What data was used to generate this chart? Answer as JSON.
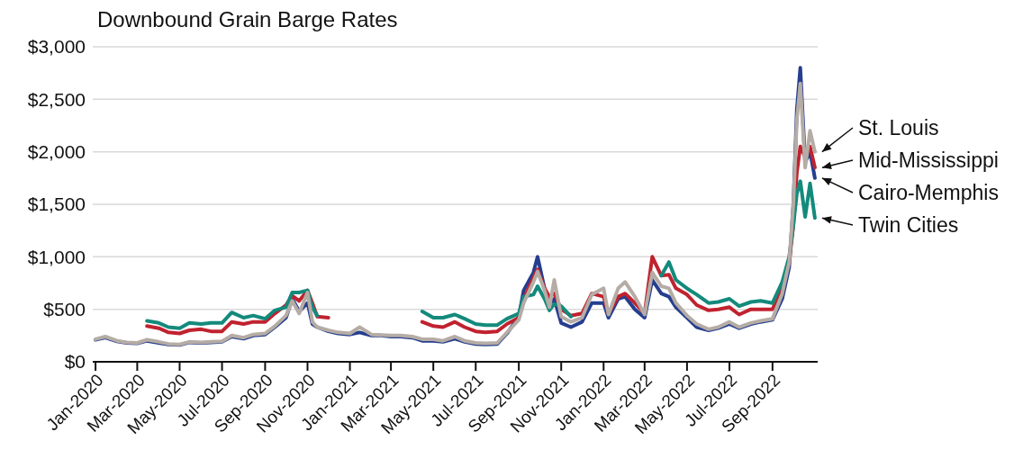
{
  "chart_data": {
    "type": "line",
    "title": "Downbound Grain Barge Rates",
    "x": [
      "2020-01-01",
      "2020-01-15",
      "2020-02-01",
      "2020-02-15",
      "2020-03-01",
      "2020-03-15",
      "2020-04-01",
      "2020-04-15",
      "2020-05-01",
      "2020-05-15",
      "2020-06-01",
      "2020-06-15",
      "2020-07-01",
      "2020-07-15",
      "2020-08-01",
      "2020-08-15",
      "2020-09-01",
      "2020-09-15",
      "2020-10-01",
      "2020-10-10",
      "2020-10-20",
      "2020-11-01",
      "2020-11-08",
      "2020-11-15",
      "2020-12-01",
      "2020-12-15",
      "2021-01-01",
      "2021-01-15",
      "2021-02-01",
      "2021-02-15",
      "2021-03-01",
      "2021-03-15",
      "2021-04-01",
      "2021-04-15",
      "2021-05-01",
      "2021-05-15",
      "2021-06-01",
      "2021-06-15",
      "2021-07-01",
      "2021-07-15",
      "2021-08-01",
      "2021-08-15",
      "2021-09-01",
      "2021-09-08",
      "2021-09-22",
      "2021-09-28",
      "2021-10-08",
      "2021-10-15",
      "2021-10-22",
      "2021-11-01",
      "2021-11-15",
      "2021-12-01",
      "2021-12-15",
      "2022-01-01",
      "2022-01-08",
      "2022-01-22",
      "2022-02-01",
      "2022-02-15",
      "2022-03-01",
      "2022-03-12",
      "2022-03-25",
      "2022-04-05",
      "2022-04-15",
      "2022-05-01",
      "2022-05-15",
      "2022-06-01",
      "2022-06-15",
      "2022-07-01",
      "2022-07-15",
      "2022-08-01",
      "2022-08-15",
      "2022-09-01",
      "2022-09-15",
      "2022-09-25",
      "2022-10-01",
      "2022-10-06",
      "2022-10-11",
      "2022-10-18",
      "2022-10-25",
      "2022-11-01"
    ],
    "series": [
      {
        "name": "Cairo-Memphis",
        "color": "#253e8f",
        "values": [
          210,
          230,
          195,
          180,
          175,
          200,
          180,
          165,
          160,
          185,
          180,
          185,
          190,
          240,
          220,
          250,
          260,
          330,
          420,
          600,
          480,
          560,
          360,
          330,
          290,
          270,
          260,
          280,
          250,
          250,
          240,
          240,
          230,
          200,
          200,
          190,
          220,
          190,
          170,
          165,
          170,
          270,
          430,
          680,
          850,
          1000,
          700,
          550,
          600,
          370,
          330,
          380,
          560,
          560,
          420,
          600,
          620,
          500,
          420,
          780,
          650,
          620,
          520,
          420,
          330,
          300,
          320,
          360,
          320,
          360,
          380,
          400,
          600,
          900,
          1500,
          2400,
          2800,
          1900,
          2000,
          1750
        ]
      },
      {
        "name": "Mid-Mississippi",
        "color": "#c0222f",
        "values": [
          null,
          null,
          null,
          null,
          null,
          340,
          320,
          280,
          270,
          300,
          310,
          290,
          290,
          380,
          360,
          380,
          380,
          460,
          540,
          630,
          580,
          680,
          560,
          430,
          420,
          null,
          null,
          null,
          null,
          null,
          null,
          null,
          null,
          380,
          340,
          330,
          380,
          330,
          290,
          280,
          290,
          360,
          420,
          600,
          800,
          880,
          700,
          620,
          650,
          500,
          440,
          460,
          650,
          620,
          460,
          620,
          650,
          560,
          460,
          1000,
          820,
          830,
          700,
          640,
          540,
          490,
          500,
          520,
          450,
          500,
          500,
          500,
          700,
          950,
          1300,
          1800,
          2050,
          1950,
          2050,
          1850
        ]
      },
      {
        "name": "Twin Cities",
        "color": "#138a7c",
        "values": [
          null,
          null,
          null,
          null,
          null,
          390,
          370,
          330,
          320,
          370,
          360,
          370,
          370,
          470,
          420,
          440,
          410,
          490,
          520,
          660,
          660,
          680,
          520,
          440,
          null,
          null,
          null,
          null,
          null,
          null,
          null,
          null,
          null,
          480,
          420,
          420,
          450,
          410,
          360,
          350,
          350,
          410,
          460,
          620,
          640,
          720,
          600,
          490,
          550,
          530,
          430,
          null,
          null,
          null,
          null,
          null,
          null,
          null,
          null,
          null,
          820,
          950,
          780,
          700,
          640,
          560,
          570,
          600,
          530,
          570,
          580,
          560,
          760,
          1000,
          1300,
          1600,
          1720,
          1380,
          1700,
          1370
        ]
      },
      {
        "name": "St. Louis",
        "color": "#b5aca5",
        "values": [
          215,
          240,
          200,
          185,
          180,
          210,
          190,
          170,
          165,
          190,
          185,
          190,
          195,
          250,
          230,
          260,
          270,
          340,
          440,
          580,
          460,
          660,
          380,
          330,
          300,
          280,
          270,
          330,
          260,
          255,
          250,
          250,
          240,
          215,
          215,
          200,
          240,
          200,
          180,
          175,
          180,
          280,
          400,
          560,
          760,
          860,
          680,
          520,
          780,
          430,
          380,
          420,
          640,
          700,
          450,
          700,
          760,
          620,
          450,
          850,
          720,
          700,
          560,
          440,
          360,
          310,
          330,
          380,
          330,
          370,
          390,
          410,
          650,
          950,
          1500,
          2300,
          2650,
          1850,
          2200,
          2000
        ]
      }
    ],
    "xlim": [
      "2019-12-28",
      "2022-11-05"
    ],
    "xticks": [
      {
        "value": "2020-01-01",
        "label": "Jan-2020"
      },
      {
        "value": "2020-03-01",
        "label": "Mar-2020"
      },
      {
        "value": "2020-05-01",
        "label": "May-2020"
      },
      {
        "value": "2020-07-01",
        "label": "Jul-2020"
      },
      {
        "value": "2020-09-01",
        "label": "Sep-2020"
      },
      {
        "value": "2020-11-01",
        "label": "Nov-2020"
      },
      {
        "value": "2021-01-01",
        "label": "Jan-2021"
      },
      {
        "value": "2021-03-01",
        "label": "Mar-2021"
      },
      {
        "value": "2021-05-01",
        "label": "May-2021"
      },
      {
        "value": "2021-07-01",
        "label": "Jul-2021"
      },
      {
        "value": "2021-09-01",
        "label": "Sep-2021"
      },
      {
        "value": "2021-11-01",
        "label": "Nov-2021"
      },
      {
        "value": "2022-01-01",
        "label": "Jan-2022"
      },
      {
        "value": "2022-03-01",
        "label": "Mar-2022"
      },
      {
        "value": "2022-05-01",
        "label": "May-2022"
      },
      {
        "value": "2022-07-01",
        "label": "Jul-2022"
      },
      {
        "value": "2022-09-01",
        "label": "Sep-2022"
      }
    ],
    "ylim": [
      0,
      3000
    ],
    "yticks": [
      {
        "value": 0,
        "label": "$0"
      },
      {
        "value": 500,
        "label": "$500"
      },
      {
        "value": 1000,
        "label": "$1,000"
      },
      {
        "value": 1500,
        "label": "$1,500"
      },
      {
        "value": 2000,
        "label": "$2,000"
      },
      {
        "value": 2500,
        "label": "$2,500"
      },
      {
        "value": 3000,
        "label": "$3,000"
      }
    ],
    "grid": "y",
    "legend": false,
    "marker": "none",
    "line_style": "solid"
  }
}
